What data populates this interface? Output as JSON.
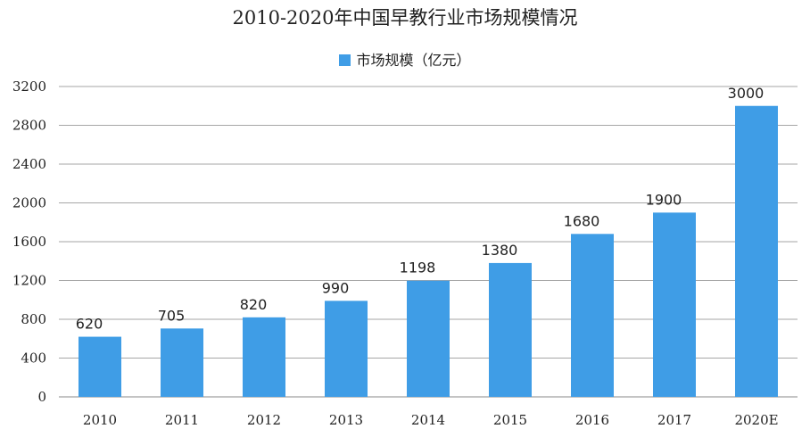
{
  "chart_data": {
    "type": "bar",
    "title": "2010-2020年中国早教行业市场规模情况",
    "categories": [
      "2010",
      "2011",
      "2012",
      "2013",
      "2014",
      "2015",
      "2016",
      "2017",
      "2020E"
    ],
    "series": [
      {
        "name": "市场规模（亿元）",
        "values": [
          620,
          705,
          820,
          990,
          1198,
          1380,
          1680,
          1900,
          3000
        ],
        "color": "#3f9de6"
      }
    ],
    "ylim": [
      0,
      3200
    ],
    "yticks": [
      "0",
      "400",
      "800",
      "1200",
      "1600",
      "2000",
      "2400",
      "2800",
      "3200"
    ],
    "grid": true,
    "legend_position": "top-center"
  }
}
